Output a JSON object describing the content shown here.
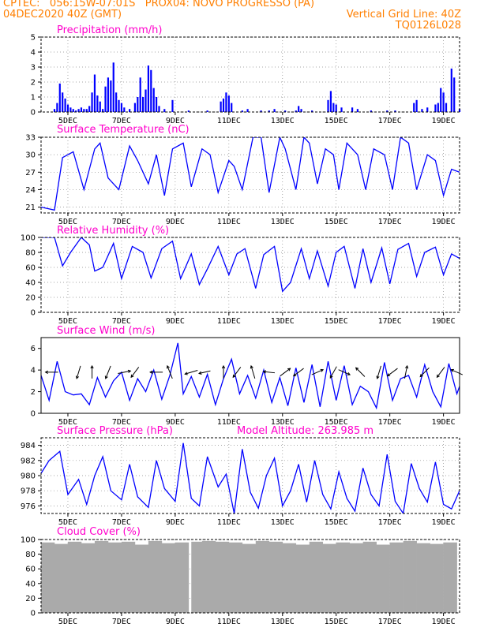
{
  "header": {
    "line1_left": "CPTEC:   056:15W-07:01S   PROX04: NOVO PROGRESSO (PA)",
    "line2_left": "04DEC2020 40Z (GMT)",
    "line2_right": "Vertical Grid Line: 40Z",
    "line3_right": "TQ0126L028"
  },
  "colors": {
    "header": "#ff7f00",
    "panel_title": "#ff00cc",
    "series": "#0000ff",
    "cloud": "#aaaaaa",
    "grid": "#888888"
  },
  "chart_data": [
    {
      "type": "bar",
      "title": "Precipitation (mm/h)",
      "x_tick_labels": [
        "5DEC",
        "7DEC",
        "9DEC",
        "11DEC",
        "13DEC",
        "15DEC",
        "17DEC",
        "19DEC"
      ],
      "ylim": [
        0,
        5
      ],
      "y_ticks": [
        0,
        1,
        2,
        3,
        4,
        5
      ],
      "grid": true,
      "bars_day_value": [
        [
          4.5,
          0.2
        ],
        [
          4.6,
          0.6
        ],
        [
          4.7,
          1.9
        ],
        [
          4.8,
          1.3
        ],
        [
          4.9,
          0.9
        ],
        [
          5.0,
          0.5
        ],
        [
          5.1,
          0.3
        ],
        [
          5.2,
          0.2
        ],
        [
          5.3,
          0.1
        ],
        [
          5.4,
          0.2
        ],
        [
          5.5,
          0.3
        ],
        [
          5.6,
          0.2
        ],
        [
          5.7,
          0.2
        ],
        [
          5.8,
          0.4
        ],
        [
          5.9,
          1.3
        ],
        [
          6.0,
          2.5
        ],
        [
          6.1,
          1.1
        ],
        [
          6.2,
          0.7
        ],
        [
          6.3,
          0.2
        ],
        [
          6.4,
          1.7
        ],
        [
          6.5,
          2.3
        ],
        [
          6.6,
          2.1
        ],
        [
          6.7,
          3.3
        ],
        [
          6.8,
          1.3
        ],
        [
          6.9,
          0.8
        ],
        [
          7.0,
          0.6
        ],
        [
          7.1,
          0.3
        ],
        [
          7.3,
          0.2
        ],
        [
          7.5,
          0.6
        ],
        [
          7.6,
          1.0
        ],
        [
          7.7,
          2.3
        ],
        [
          7.8,
          1.0
        ],
        [
          7.9,
          1.5
        ],
        [
          8.0,
          3.1
        ],
        [
          8.1,
          2.8
        ],
        [
          8.2,
          1.6
        ],
        [
          8.3,
          1.0
        ],
        [
          8.4,
          0.4
        ],
        [
          8.6,
          0.2
        ],
        [
          8.9,
          0.8
        ],
        [
          9.5,
          0.1
        ],
        [
          10.2,
          0.1
        ],
        [
          10.7,
          0.7
        ],
        [
          10.8,
          0.9
        ],
        [
          10.9,
          1.3
        ],
        [
          11.0,
          1.1
        ],
        [
          11.1,
          0.6
        ],
        [
          11.5,
          0.1
        ],
        [
          11.7,
          0.2
        ],
        [
          12.2,
          0.1
        ],
        [
          12.5,
          0.1
        ],
        [
          12.7,
          0.2
        ],
        [
          13.1,
          0.1
        ],
        [
          13.5,
          0.1
        ],
        [
          13.6,
          0.4
        ],
        [
          13.7,
          0.2
        ],
        [
          14.1,
          0.1
        ],
        [
          14.7,
          0.8
        ],
        [
          14.8,
          1.4
        ],
        [
          14.9,
          0.6
        ],
        [
          15.0,
          0.5
        ],
        [
          15.2,
          0.3
        ],
        [
          15.6,
          0.3
        ],
        [
          15.8,
          0.2
        ],
        [
          16.3,
          0.1
        ],
        [
          16.9,
          0.1
        ],
        [
          17.2,
          0.1
        ],
        [
          17.9,
          0.6
        ],
        [
          18.0,
          0.8
        ],
        [
          18.2,
          0.2
        ],
        [
          18.4,
          0.3
        ],
        [
          18.7,
          0.5
        ],
        [
          18.8,
          0.6
        ],
        [
          18.9,
          1.6
        ],
        [
          19.0,
          1.3
        ],
        [
          19.1,
          0.6
        ],
        [
          19.3,
          2.9
        ],
        [
          19.4,
          2.3
        ],
        [
          19.6,
          0.2
        ]
      ]
    },
    {
      "type": "line",
      "title": "Surface Temperature (nC)",
      "x_tick_labels": [
        "5DEC",
        "7DEC",
        "9DEC",
        "11DEC",
        "13DEC",
        "15DEC",
        "17DEC",
        "19DEC"
      ],
      "ylim": [
        20,
        33
      ],
      "y_ticks": [
        21,
        24,
        27,
        30,
        33
      ],
      "grid": true,
      "x_day": [
        4.0,
        4.5,
        4.8,
        5.2,
        5.6,
        6.0,
        6.2,
        6.5,
        6.9,
        7.3,
        7.6,
        8.0,
        8.3,
        8.6,
        8.9,
        9.3,
        9.6,
        10.0,
        10.3,
        10.6,
        11.0,
        11.2,
        11.5,
        11.9,
        12.2,
        12.5,
        12.9,
        13.1,
        13.5,
        13.8,
        14.0,
        14.3,
        14.6,
        14.9,
        15.1,
        15.4,
        15.8,
        16.1,
        16.4,
        16.8,
        17.1,
        17.4,
        17.7,
        18.0,
        18.4,
        18.7,
        19.0,
        19.3,
        19.6
      ],
      "y": [
        21,
        20.5,
        29.5,
        30.5,
        24,
        31,
        32,
        26,
        24,
        31.5,
        29,
        25,
        30,
        23,
        31,
        32,
        24.5,
        31,
        30,
        23.5,
        29,
        28,
        24,
        33,
        33,
        23.5,
        33,
        31,
        24,
        33,
        32,
        25,
        31,
        30,
        24,
        32,
        30,
        24,
        31,
        30,
        24,
        33,
        32,
        24,
        30,
        29,
        23,
        27.5,
        27
      ]
    },
    {
      "type": "line",
      "title": "Relative Humidity (%)",
      "x_tick_labels": [
        "5DEC",
        "7DEC",
        "9DEC",
        "11DEC",
        "13DEC",
        "15DEC",
        "17DEC",
        "19DEC"
      ],
      "ylim": [
        0,
        100
      ],
      "y_ticks": [
        0,
        20,
        40,
        60,
        80,
        100
      ],
      "grid": true,
      "x_day": [
        4.0,
        4.5,
        4.8,
        5.1,
        5.5,
        5.8,
        6.0,
        6.3,
        6.7,
        7.0,
        7.4,
        7.8,
        8.1,
        8.5,
        8.9,
        9.2,
        9.6,
        9.9,
        10.2,
        10.6,
        11.0,
        11.3,
        11.6,
        12.0,
        12.3,
        12.7,
        13.0,
        13.3,
        13.7,
        14.0,
        14.3,
        14.7,
        15.0,
        15.3,
        15.7,
        16.0,
        16.3,
        16.7,
        17.0,
        17.3,
        17.7,
        18.0,
        18.3,
        18.7,
        19.0,
        19.3,
        19.6
      ],
      "y": [
        100,
        100,
        62,
        80,
        100,
        90,
        55,
        60,
        92,
        45,
        88,
        80,
        46,
        85,
        95,
        45,
        78,
        37,
        58,
        88,
        50,
        78,
        85,
        32,
        77,
        88,
        28,
        40,
        85,
        45,
        82,
        35,
        80,
        88,
        32,
        85,
        40,
        86,
        38,
        84,
        92,
        48,
        80,
        87,
        50,
        78,
        72
      ]
    },
    {
      "type": "line",
      "title": "Surface Wind (m/s)",
      "x_tick_labels": [
        "5DEC",
        "7DEC",
        "9DEC",
        "11DEC",
        "13DEC",
        "15DEC",
        "17DEC",
        "19DEC"
      ],
      "ylim": [
        0,
        7
      ],
      "y_ticks": [
        0,
        2,
        4,
        6
      ],
      "grid": false,
      "x_day": [
        4.0,
        4.3,
        4.6,
        4.9,
        5.2,
        5.5,
        5.8,
        6.1,
        6.4,
        6.7,
        7.0,
        7.3,
        7.6,
        7.9,
        8.2,
        8.5,
        8.8,
        9.1,
        9.3,
        9.6,
        9.9,
        10.2,
        10.5,
        10.8,
        11.1,
        11.4,
        11.7,
        12.0,
        12.3,
        12.6,
        12.9,
        13.2,
        13.5,
        13.8,
        14.1,
        14.4,
        14.7,
        15.0,
        15.3,
        15.6,
        15.9,
        16.2,
        16.5,
        16.8,
        17.1,
        17.4,
        17.7,
        18.0,
        18.3,
        18.6,
        18.9,
        19.2,
        19.5,
        19.6
      ],
      "y": [
        3.5,
        1.2,
        4.8,
        2.0,
        1.7,
        1.8,
        0.8,
        3.3,
        1.5,
        3.0,
        3.8,
        1.2,
        3.2,
        2.0,
        4.0,
        1.3,
        3.5,
        6.5,
        1.8,
        3.4,
        1.5,
        3.6,
        0.8,
        3.2,
        5.0,
        1.8,
        3.5,
        1.4,
        4.0,
        1.0,
        3.3,
        0.7,
        4.2,
        1.0,
        4.5,
        0.6,
        4.8,
        1.2,
        4.4,
        0.8,
        2.5,
        2.0,
        0.5,
        4.7,
        1.2,
        3.2,
        3.5,
        1.5,
        4.5,
        2.0,
        0.6,
        4.6,
        1.8,
        2.5
      ],
      "arrows": [
        {
          "day": 4.4,
          "u": -1,
          "v": 0
        },
        {
          "day": 5.4,
          "u": -0.3,
          "v": -1
        },
        {
          "day": 5.9,
          "u": 0,
          "v": 1
        },
        {
          "day": 6.5,
          "u": -0.4,
          "v": -1
        },
        {
          "day": 7.1,
          "u": 1,
          "v": 0.2
        },
        {
          "day": 7.5,
          "u": -0.6,
          "v": -0.8
        },
        {
          "day": 8.3,
          "u": -1,
          "v": 0
        },
        {
          "day": 8.8,
          "u": -0.4,
          "v": 1
        },
        {
          "day": 9.6,
          "u": -1,
          "v": -0.3
        },
        {
          "day": 10.1,
          "u": -0.9,
          "v": -0.2
        },
        {
          "day": 10.8,
          "u": 0,
          "v": 1
        },
        {
          "day": 11.3,
          "u": -0.6,
          "v": -0.8
        },
        {
          "day": 11.9,
          "u": -0.3,
          "v": 1
        },
        {
          "day": 12.5,
          "u": -0.9,
          "v": 0.1
        },
        {
          "day": 13.1,
          "u": 0.8,
          "v": 0.6
        },
        {
          "day": 13.6,
          "u": -0.8,
          "v": -0.6
        },
        {
          "day": 14.3,
          "u": 0.9,
          "v": 0.4
        },
        {
          "day": 14.9,
          "u": -0.5,
          "v": -0.9
        },
        {
          "day": 15.3,
          "u": 0.9,
          "v": -0.4
        },
        {
          "day": 15.9,
          "u": -0.7,
          "v": 0.7
        },
        {
          "day": 16.6,
          "u": -0.3,
          "v": -1
        },
        {
          "day": 17.1,
          "u": -0.8,
          "v": -0.6
        },
        {
          "day": 17.6,
          "u": 0.2,
          "v": 1
        },
        {
          "day": 18.3,
          "u": -0.7,
          "v": -0.7
        },
        {
          "day": 18.9,
          "u": -0.6,
          "v": -0.8
        },
        {
          "day": 19.5,
          "u": -0.9,
          "v": 0.4
        }
      ]
    },
    {
      "type": "line",
      "title": "Surface Pressure (hPa)",
      "annotation": "Model Altitude: 263.985 m",
      "x_tick_labels": [
        "5DEC",
        "7DEC",
        "9DEC",
        "11DEC",
        "13DEC",
        "15DEC",
        "17DEC",
        "19DEC"
      ],
      "ylim": [
        975,
        985
      ],
      "y_ticks": [
        976,
        978,
        980,
        982,
        984
      ],
      "grid": true,
      "x_day": [
        4.0,
        4.3,
        4.7,
        5.0,
        5.4,
        5.7,
        6.0,
        6.3,
        6.6,
        7.0,
        7.3,
        7.6,
        8.0,
        8.3,
        8.6,
        9.0,
        9.3,
        9.6,
        9.9,
        10.2,
        10.6,
        10.9,
        11.2,
        11.5,
        11.8,
        12.1,
        12.4,
        12.7,
        13.0,
        13.3,
        13.6,
        13.9,
        14.2,
        14.5,
        14.8,
        15.1,
        15.4,
        15.7,
        16.0,
        16.3,
        16.6,
        16.9,
        17.2,
        17.5,
        17.8,
        18.1,
        18.4,
        18.7,
        19.0,
        19.3,
        19.6
      ],
      "y": [
        980.3,
        982,
        983.2,
        977.5,
        979.5,
        976.2,
        980,
        982.5,
        978,
        976.8,
        981.5,
        977.2,
        975.8,
        982,
        978.3,
        976.6,
        984.3,
        977,
        976,
        982.5,
        978.5,
        980.2,
        975,
        983.5,
        977.8,
        975.7,
        980,
        982.3,
        976,
        978,
        981.5,
        976.5,
        982,
        977.5,
        975.6,
        980.5,
        977,
        975.3,
        981,
        977.5,
        976,
        982.8,
        976.6,
        975,
        981.6,
        978.3,
        976.5,
        981.8,
        976.2,
        975.6,
        978
      ]
    },
    {
      "type": "bar",
      "title": "Cloud Cover (%)",
      "x_tick_labels": [
        "5DEC",
        "7DEC",
        "9DEC",
        "11DEC",
        "13DEC",
        "15DEC",
        "17DEC",
        "19DEC"
      ],
      "ylim": [
        0,
        100
      ],
      "y_ticks": [
        0,
        20,
        40,
        60,
        80,
        100
      ],
      "grid": true,
      "x_day": [
        4.0,
        4.5,
        5.0,
        5.5,
        6.0,
        6.5,
        7.0,
        7.5,
        8.0,
        8.5,
        9.0,
        9.4,
        9.5,
        9.6,
        10.0,
        10.5,
        11.0,
        11.5,
        12.0,
        12.5,
        13.0,
        13.5,
        14.0,
        14.5,
        15.0,
        15.5,
        16.0,
        16.5,
        17.0,
        17.5,
        18.0,
        18.5,
        19.0,
        19.5
      ],
      "y": [
        96,
        94,
        97,
        95,
        98,
        96,
        97,
        93,
        98,
        95,
        96,
        96,
        0,
        97,
        98,
        97,
        96,
        94,
        98,
        97,
        95,
        93,
        97,
        94,
        96,
        95,
        97,
        93,
        96,
        98,
        95,
        94,
        96,
        97
      ]
    }
  ]
}
